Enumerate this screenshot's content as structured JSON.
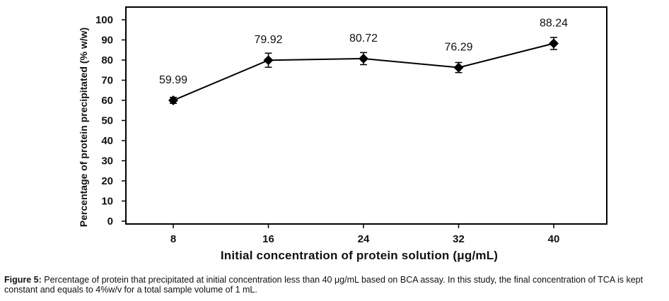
{
  "chart_data": {
    "type": "line",
    "categories": [
      "8",
      "16",
      "24",
      "32",
      "40"
    ],
    "series": [
      {
        "values": [
          59.99,
          79.92,
          80.72,
          76.29,
          88.24
        ],
        "errors": [
          1.5,
          3.5,
          3.0,
          2.5,
          3.0
        ]
      }
    ],
    "data_labels": [
      "59.99",
      "79.92",
      "80.72",
      "76.29",
      "88.24"
    ],
    "yticks": [
      "0",
      "10",
      "20",
      "30",
      "40",
      "50",
      "60",
      "70",
      "80",
      "90",
      "100"
    ],
    "ylim": [
      0,
      100
    ],
    "xlabel": "Initial concentration of protein solution  (μg/mL)",
    "ylabel": "Percentage of protein precipitated (% w/w)",
    "grid": false,
    "legend": "none",
    "line_color": "#000000",
    "marker": "diamond"
  },
  "caption": {
    "label": "Figure 5:",
    "text": " Percentage of protein that precipitated at initial concentration less than 40 μg/mL based on BCA assay. In this study, the final concentration of TCA is kept constant and equals to 4%w/v for a total sample volume of 1 mL."
  }
}
